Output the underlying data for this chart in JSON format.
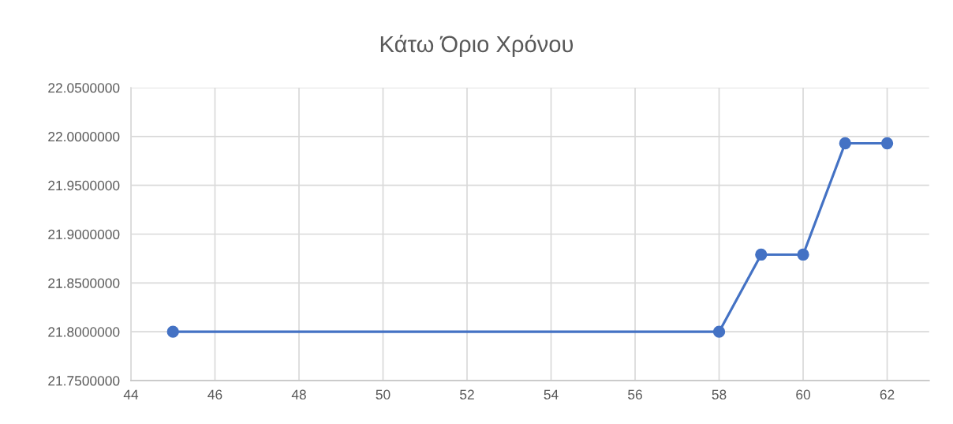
{
  "chart_data": {
    "type": "line",
    "title": "Κάτω Όριο Χρόνου",
    "x": [
      45,
      58,
      59,
      60,
      61,
      62
    ],
    "series": [
      {
        "color": "#4472c4",
        "values": [
          21.8,
          21.8,
          21.879,
          21.879,
          21.993,
          21.993
        ]
      }
    ],
    "xlim": [
      44,
      63
    ],
    "xticks": [
      44,
      46,
      48,
      50,
      52,
      54,
      56,
      58,
      60,
      62
    ],
    "ylim": [
      21.75,
      22.05
    ],
    "yticks": [
      {
        "value": 21.75,
        "label": "21.7500000"
      },
      {
        "value": 21.8,
        "label": "21.8000000"
      },
      {
        "value": 21.85,
        "label": "21.8500000"
      },
      {
        "value": 21.9,
        "label": "21.9000000"
      },
      {
        "value": 21.95,
        "label": "21.9500000"
      },
      {
        "value": 22.0,
        "label": "22.0000000"
      },
      {
        "value": 22.05,
        "label": "22.0500000"
      }
    ],
    "grid": true,
    "marker": "circle",
    "line_style": "solid"
  }
}
